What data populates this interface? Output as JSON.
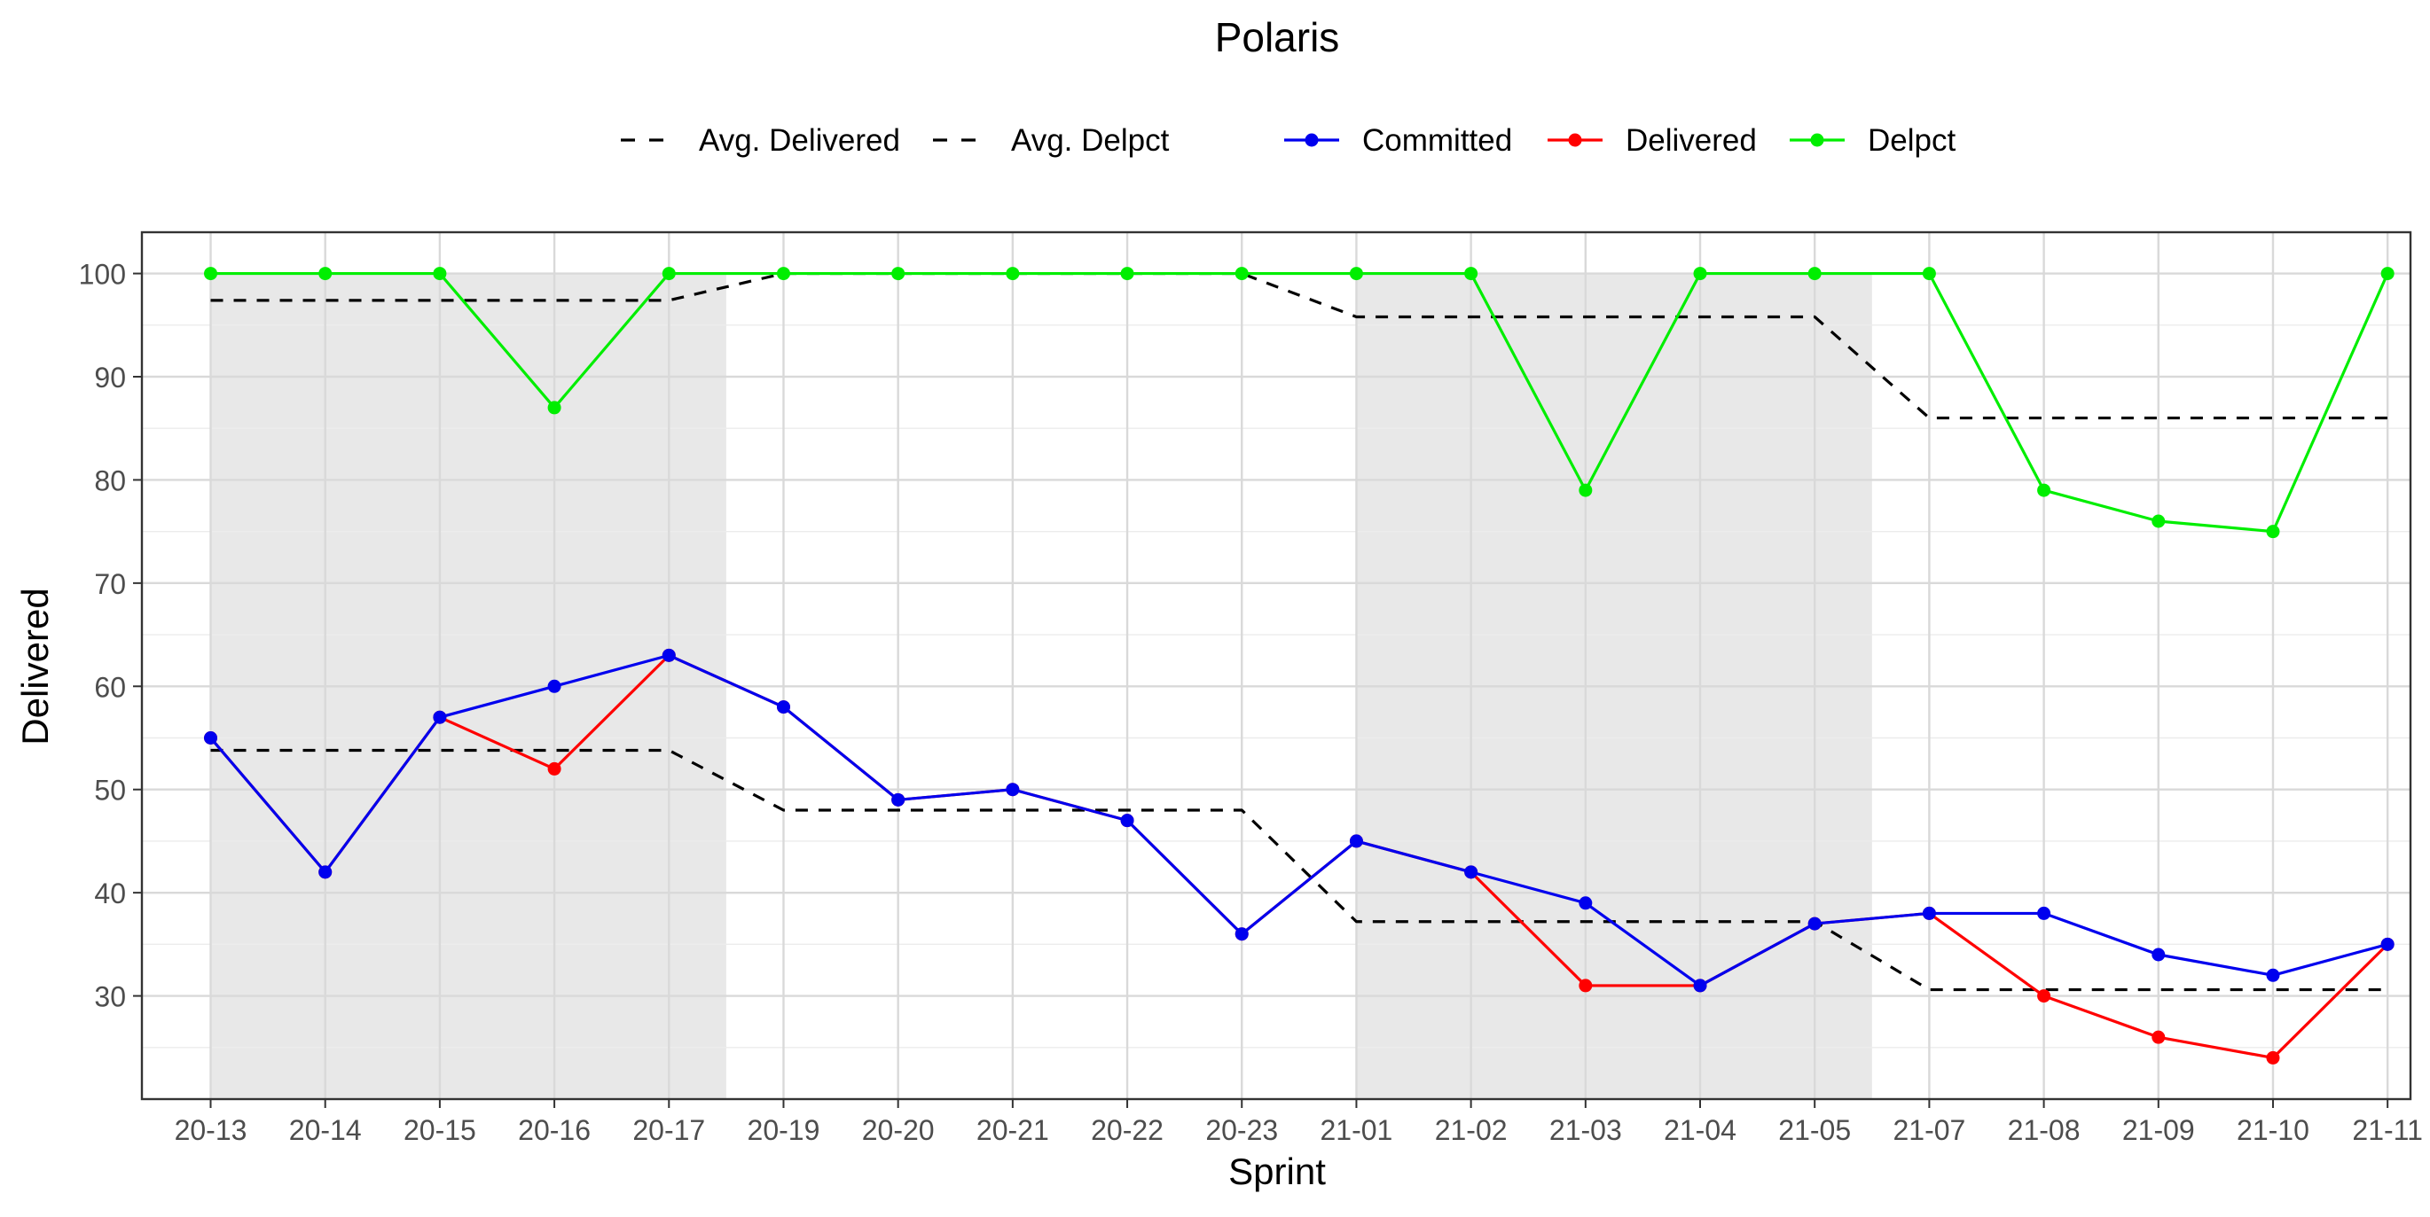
{
  "chart_data": {
    "type": "line",
    "title": "Polaris",
    "xlabel": "Sprint",
    "ylabel": "Delivered",
    "ylim": [
      20,
      104
    ],
    "yticks": [
      30,
      40,
      50,
      60,
      70,
      80,
      90,
      100
    ],
    "grid": true,
    "legend_position": "top",
    "categories": [
      "20-13",
      "20-14",
      "20-15",
      "20-16",
      "20-17",
      "20-19",
      "20-20",
      "20-21",
      "20-22",
      "20-23",
      "21-01",
      "21-02",
      "21-03",
      "21-04",
      "21-05",
      "21-07",
      "21-08",
      "21-09",
      "21-10",
      "21-11"
    ],
    "shaded_ranges": [
      {
        "from": "20-13",
        "to": "20-17"
      },
      {
        "from": "21-01",
        "to": "21-05"
      }
    ],
    "series": [
      {
        "name": "Committed",
        "color": "#0000ee",
        "style": "solid",
        "marker": true,
        "values": [
          55,
          42,
          57,
          60,
          63,
          58,
          49,
          50,
          47,
          36,
          45,
          42,
          39,
          31,
          37,
          38,
          38,
          34,
          32,
          35
        ]
      },
      {
        "name": "Delivered",
        "color": "#ff0000",
        "style": "solid",
        "marker": true,
        "values": [
          55,
          42,
          57,
          52,
          63,
          58,
          49,
          50,
          47,
          36,
          45,
          42,
          31,
          31,
          37,
          38,
          30,
          26,
          24,
          35
        ]
      },
      {
        "name": "Delpct",
        "color": "#00ee00",
        "style": "solid",
        "marker": true,
        "values": [
          100,
          100,
          100,
          87,
          100,
          100,
          100,
          100,
          100,
          100,
          100,
          100,
          79,
          100,
          100,
          100,
          79,
          76,
          75,
          100
        ]
      },
      {
        "name": "Avg. Delivered",
        "color": "#000000",
        "style": "dashed",
        "marker": false,
        "values": [
          53.8,
          53.8,
          53.8,
          53.8,
          53.8,
          48,
          48,
          48,
          48,
          48,
          37.2,
          37.2,
          37.2,
          37.2,
          37.2,
          30.6,
          30.6,
          30.6,
          30.6,
          30.6
        ]
      },
      {
        "name": "Avg. Delpct",
        "color": "#000000",
        "style": "dashed",
        "marker": false,
        "values": [
          97.4,
          97.4,
          97.4,
          97.4,
          97.4,
          100,
          100,
          100,
          100,
          100,
          95.8,
          95.8,
          95.8,
          95.8,
          95.8,
          86,
          86,
          86,
          86,
          86
        ]
      }
    ],
    "legend_order": [
      "Avg. Delivered",
      "Avg. Delpct",
      "Committed",
      "Delivered",
      "Delpct"
    ]
  }
}
